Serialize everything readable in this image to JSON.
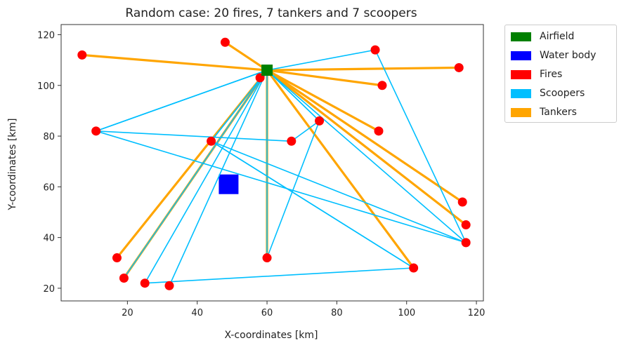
{
  "chart_data": {
    "type": "scatter",
    "title": "Random case: 20 fires, 7 tankers and 7 scoopers",
    "xlabel": "X-coordinates [km]",
    "ylabel": "Y-coordinates [km]",
    "xlim": [
      1,
      122
    ],
    "ylim": [
      15,
      124
    ],
    "xticks": [
      20,
      40,
      60,
      80,
      100,
      120
    ],
    "yticks": [
      20,
      40,
      60,
      80,
      100,
      120
    ],
    "grid": false,
    "legend_position": "outside-right",
    "legend": [
      {
        "label": "Airfield",
        "color": "#008000"
      },
      {
        "label": "Water body",
        "color": "#0000ff"
      },
      {
        "label": "Fires",
        "color": "#ff0000"
      },
      {
        "label": "Scoopers",
        "color": "#00bfff"
      },
      {
        "label": "Tankers",
        "color": "#ffa500"
      }
    ],
    "airfield": {
      "x": 60,
      "y": 106
    },
    "water_body": {
      "x": 49,
      "y": 61
    },
    "fires": [
      {
        "x": 7,
        "y": 112
      },
      {
        "x": 48,
        "y": 117
      },
      {
        "x": 91,
        "y": 114
      },
      {
        "x": 115,
        "y": 107
      },
      {
        "x": 93,
        "y": 100
      },
      {
        "x": 58,
        "y": 103
      },
      {
        "x": 11,
        "y": 82
      },
      {
        "x": 75,
        "y": 86
      },
      {
        "x": 92,
        "y": 82
      },
      {
        "x": 67,
        "y": 78
      },
      {
        "x": 44,
        "y": 78
      },
      {
        "x": 116,
        "y": 54
      },
      {
        "x": 117,
        "y": 45
      },
      {
        "x": 117,
        "y": 38
      },
      {
        "x": 17,
        "y": 32
      },
      {
        "x": 60,
        "y": 32
      },
      {
        "x": 19,
        "y": 24
      },
      {
        "x": 102,
        "y": 28
      },
      {
        "x": 25,
        "y": 22
      },
      {
        "x": 32,
        "y": 21
      }
    ],
    "tanker_routes": [
      [
        [
          60,
          106
        ],
        [
          7,
          112
        ]
      ],
      [
        [
          60,
          106
        ],
        [
          48,
          117
        ]
      ],
      [
        [
          60,
          106
        ],
        [
          115,
          107
        ]
      ],
      [
        [
          60,
          106
        ],
        [
          93,
          100
        ]
      ],
      [
        [
          60,
          106
        ],
        [
          92,
          82
        ]
      ],
      [
        [
          60,
          106
        ],
        [
          116,
          54
        ]
      ],
      [
        [
          60,
          106
        ],
        [
          117,
          45
        ]
      ],
      [
        [
          60,
          106
        ],
        [
          17,
          32
        ]
      ],
      [
        [
          60,
          106
        ],
        [
          60,
          32
        ]
      ],
      [
        [
          60,
          106
        ],
        [
          19,
          24
        ]
      ],
      [
        [
          60,
          106
        ],
        [
          102,
          28
        ]
      ],
      [
        [
          60,
          106
        ],
        [
          58,
          103
        ]
      ]
    ],
    "scooper_routes": [
      [
        [
          60,
          106
        ],
        [
          11,
          82
        ],
        [
          67,
          78
        ],
        [
          75,
          86
        ],
        [
          60,
          106
        ]
      ],
      [
        [
          60,
          106
        ],
        [
          91,
          114
        ],
        [
          117,
          38
        ],
        [
          44,
          78
        ],
        [
          60,
          106
        ]
      ],
      [
        [
          60,
          106
        ],
        [
          11,
          82
        ],
        [
          117,
          38
        ],
        [
          60,
          106
        ]
      ],
      [
        [
          60,
          106
        ],
        [
          25,
          22
        ],
        [
          102,
          28
        ],
        [
          44,
          78
        ],
        [
          60,
          106
        ]
      ],
      [
        [
          60,
          106
        ],
        [
          32,
          21
        ],
        [
          60,
          106
        ]
      ],
      [
        [
          60,
          106
        ],
        [
          60,
          32
        ],
        [
          75,
          86
        ],
        [
          60,
          106
        ]
      ],
      [
        [
          60,
          106
        ],
        [
          19,
          24
        ],
        [
          60,
          106
        ]
      ],
      [
        [
          44,
          78
        ],
        [
          102,
          28
        ]
      ]
    ]
  }
}
